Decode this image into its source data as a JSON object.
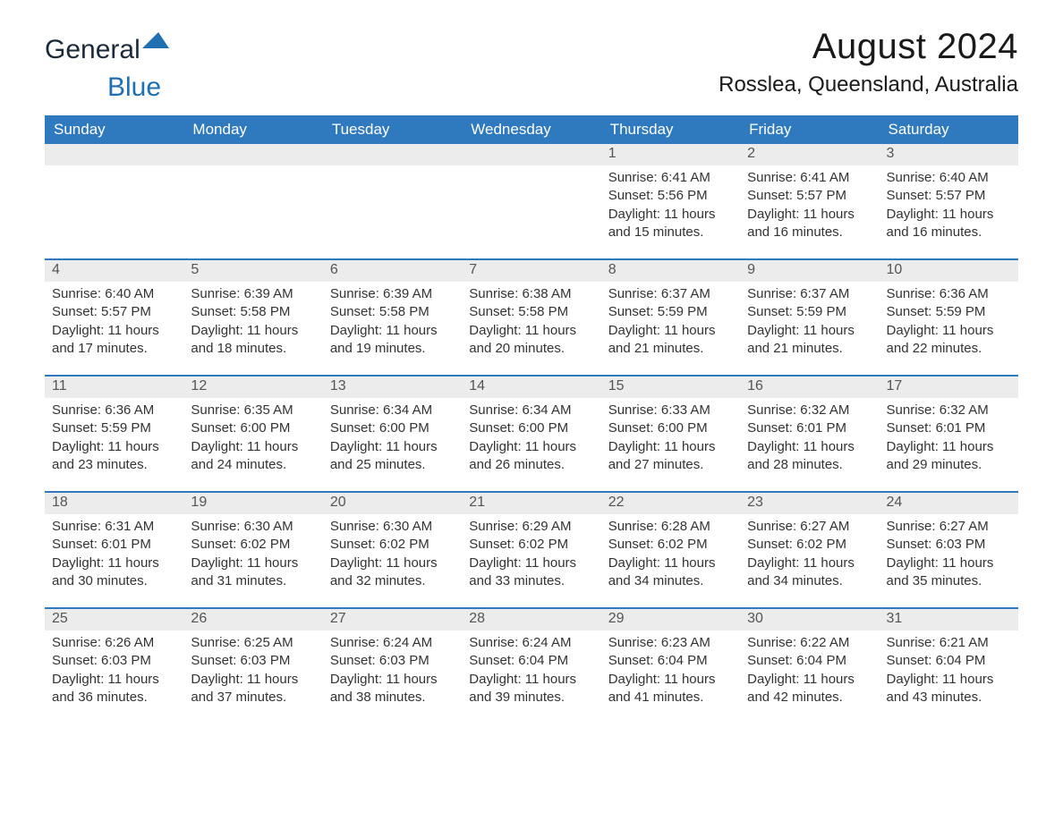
{
  "logo": {
    "text_a": "General",
    "text_b": "Blue"
  },
  "title": "August 2024",
  "location": "Rosslea, Queensland, Australia",
  "colors": {
    "header_bg": "#2f79bf",
    "header_text": "#ffffff",
    "daynum_bg": "#ececec",
    "daynum_text": "#555555",
    "body_text": "#333333",
    "row_border": "#2f79bf",
    "logo_dark": "#1a2a3a",
    "logo_blue": "#1f6fb2",
    "page_bg": "#ffffff"
  },
  "weekdays": [
    "Sunday",
    "Monday",
    "Tuesday",
    "Wednesday",
    "Thursday",
    "Friday",
    "Saturday"
  ],
  "weeks": [
    [
      null,
      null,
      null,
      null,
      {
        "n": "1",
        "sunrise": "Sunrise: 6:41 AM",
        "sunset": "Sunset: 5:56 PM",
        "daylight1": "Daylight: 11 hours",
        "daylight2": "and 15 minutes."
      },
      {
        "n": "2",
        "sunrise": "Sunrise: 6:41 AM",
        "sunset": "Sunset: 5:57 PM",
        "daylight1": "Daylight: 11 hours",
        "daylight2": "and 16 minutes."
      },
      {
        "n": "3",
        "sunrise": "Sunrise: 6:40 AM",
        "sunset": "Sunset: 5:57 PM",
        "daylight1": "Daylight: 11 hours",
        "daylight2": "and 16 minutes."
      }
    ],
    [
      {
        "n": "4",
        "sunrise": "Sunrise: 6:40 AM",
        "sunset": "Sunset: 5:57 PM",
        "daylight1": "Daylight: 11 hours",
        "daylight2": "and 17 minutes."
      },
      {
        "n": "5",
        "sunrise": "Sunrise: 6:39 AM",
        "sunset": "Sunset: 5:58 PM",
        "daylight1": "Daylight: 11 hours",
        "daylight2": "and 18 minutes."
      },
      {
        "n": "6",
        "sunrise": "Sunrise: 6:39 AM",
        "sunset": "Sunset: 5:58 PM",
        "daylight1": "Daylight: 11 hours",
        "daylight2": "and 19 minutes."
      },
      {
        "n": "7",
        "sunrise": "Sunrise: 6:38 AM",
        "sunset": "Sunset: 5:58 PM",
        "daylight1": "Daylight: 11 hours",
        "daylight2": "and 20 minutes."
      },
      {
        "n": "8",
        "sunrise": "Sunrise: 6:37 AM",
        "sunset": "Sunset: 5:59 PM",
        "daylight1": "Daylight: 11 hours",
        "daylight2": "and 21 minutes."
      },
      {
        "n": "9",
        "sunrise": "Sunrise: 6:37 AM",
        "sunset": "Sunset: 5:59 PM",
        "daylight1": "Daylight: 11 hours",
        "daylight2": "and 21 minutes."
      },
      {
        "n": "10",
        "sunrise": "Sunrise: 6:36 AM",
        "sunset": "Sunset: 5:59 PM",
        "daylight1": "Daylight: 11 hours",
        "daylight2": "and 22 minutes."
      }
    ],
    [
      {
        "n": "11",
        "sunrise": "Sunrise: 6:36 AM",
        "sunset": "Sunset: 5:59 PM",
        "daylight1": "Daylight: 11 hours",
        "daylight2": "and 23 minutes."
      },
      {
        "n": "12",
        "sunrise": "Sunrise: 6:35 AM",
        "sunset": "Sunset: 6:00 PM",
        "daylight1": "Daylight: 11 hours",
        "daylight2": "and 24 minutes."
      },
      {
        "n": "13",
        "sunrise": "Sunrise: 6:34 AM",
        "sunset": "Sunset: 6:00 PM",
        "daylight1": "Daylight: 11 hours",
        "daylight2": "and 25 minutes."
      },
      {
        "n": "14",
        "sunrise": "Sunrise: 6:34 AM",
        "sunset": "Sunset: 6:00 PM",
        "daylight1": "Daylight: 11 hours",
        "daylight2": "and 26 minutes."
      },
      {
        "n": "15",
        "sunrise": "Sunrise: 6:33 AM",
        "sunset": "Sunset: 6:00 PM",
        "daylight1": "Daylight: 11 hours",
        "daylight2": "and 27 minutes."
      },
      {
        "n": "16",
        "sunrise": "Sunrise: 6:32 AM",
        "sunset": "Sunset: 6:01 PM",
        "daylight1": "Daylight: 11 hours",
        "daylight2": "and 28 minutes."
      },
      {
        "n": "17",
        "sunrise": "Sunrise: 6:32 AM",
        "sunset": "Sunset: 6:01 PM",
        "daylight1": "Daylight: 11 hours",
        "daylight2": "and 29 minutes."
      }
    ],
    [
      {
        "n": "18",
        "sunrise": "Sunrise: 6:31 AM",
        "sunset": "Sunset: 6:01 PM",
        "daylight1": "Daylight: 11 hours",
        "daylight2": "and 30 minutes."
      },
      {
        "n": "19",
        "sunrise": "Sunrise: 6:30 AM",
        "sunset": "Sunset: 6:02 PM",
        "daylight1": "Daylight: 11 hours",
        "daylight2": "and 31 minutes."
      },
      {
        "n": "20",
        "sunrise": "Sunrise: 6:30 AM",
        "sunset": "Sunset: 6:02 PM",
        "daylight1": "Daylight: 11 hours",
        "daylight2": "and 32 minutes."
      },
      {
        "n": "21",
        "sunrise": "Sunrise: 6:29 AM",
        "sunset": "Sunset: 6:02 PM",
        "daylight1": "Daylight: 11 hours",
        "daylight2": "and 33 minutes."
      },
      {
        "n": "22",
        "sunrise": "Sunrise: 6:28 AM",
        "sunset": "Sunset: 6:02 PM",
        "daylight1": "Daylight: 11 hours",
        "daylight2": "and 34 minutes."
      },
      {
        "n": "23",
        "sunrise": "Sunrise: 6:27 AM",
        "sunset": "Sunset: 6:02 PM",
        "daylight1": "Daylight: 11 hours",
        "daylight2": "and 34 minutes."
      },
      {
        "n": "24",
        "sunrise": "Sunrise: 6:27 AM",
        "sunset": "Sunset: 6:03 PM",
        "daylight1": "Daylight: 11 hours",
        "daylight2": "and 35 minutes."
      }
    ],
    [
      {
        "n": "25",
        "sunrise": "Sunrise: 6:26 AM",
        "sunset": "Sunset: 6:03 PM",
        "daylight1": "Daylight: 11 hours",
        "daylight2": "and 36 minutes."
      },
      {
        "n": "26",
        "sunrise": "Sunrise: 6:25 AM",
        "sunset": "Sunset: 6:03 PM",
        "daylight1": "Daylight: 11 hours",
        "daylight2": "and 37 minutes."
      },
      {
        "n": "27",
        "sunrise": "Sunrise: 6:24 AM",
        "sunset": "Sunset: 6:03 PM",
        "daylight1": "Daylight: 11 hours",
        "daylight2": "and 38 minutes."
      },
      {
        "n": "28",
        "sunrise": "Sunrise: 6:24 AM",
        "sunset": "Sunset: 6:04 PM",
        "daylight1": "Daylight: 11 hours",
        "daylight2": "and 39 minutes."
      },
      {
        "n": "29",
        "sunrise": "Sunrise: 6:23 AM",
        "sunset": "Sunset: 6:04 PM",
        "daylight1": "Daylight: 11 hours",
        "daylight2": "and 41 minutes."
      },
      {
        "n": "30",
        "sunrise": "Sunrise: 6:22 AM",
        "sunset": "Sunset: 6:04 PM",
        "daylight1": "Daylight: 11 hours",
        "daylight2": "and 42 minutes."
      },
      {
        "n": "31",
        "sunrise": "Sunrise: 6:21 AM",
        "sunset": "Sunset: 6:04 PM",
        "daylight1": "Daylight: 11 hours",
        "daylight2": "and 43 minutes."
      }
    ]
  ]
}
